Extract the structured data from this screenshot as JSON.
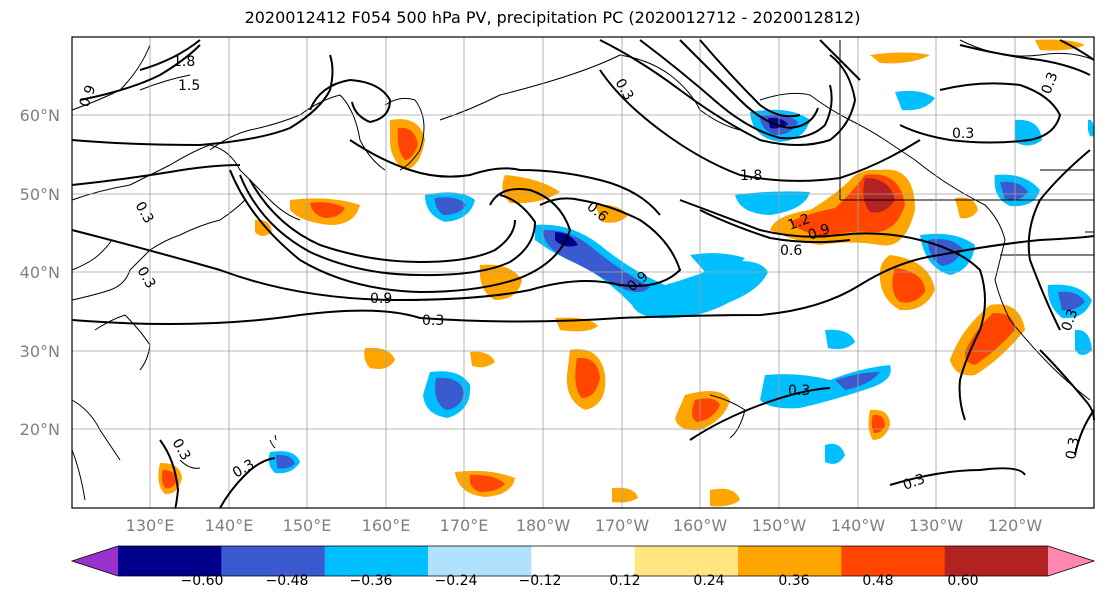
{
  "title": "2020012412 F054 500 hPa PV, precipitation PC (2020012712 - 2020012812)",
  "lat_labels": [
    "60°N",
    "50°N",
    "40°N",
    "30°N",
    "20°N"
  ],
  "lon_labels": [
    "130°E",
    "140°E",
    "150°E",
    "160°E",
    "170°E",
    "180°W",
    "170°W",
    "160°W",
    "150°W",
    "140°W",
    "130°W",
    "120°W"
  ],
  "contour_labels": [
    "1.8",
    "1.5",
    "0.9",
    "0.3",
    "0.3",
    "0.9",
    "0.3",
    "0.6",
    "0.9",
    "1.2",
    "0.9",
    "0.6",
    "1.8",
    "0.3",
    "0.3",
    "0.3",
    "0.3",
    "0.3",
    "0.3",
    "0.3",
    "0.3",
    "0.3"
  ],
  "colorbar": {
    "tick_labels": [
      "−0.60",
      "−0.48",
      "−0.36",
      "−0.24",
      "−0.12",
      "0.12",
      "0.24",
      "0.36",
      "0.48",
      "0.60"
    ],
    "colors": [
      "#9932CC",
      "#00008B",
      "#3A5BCF",
      "#00BFFF",
      "#B0E2FF",
      "#FFFFFF",
      "#FFE680",
      "#FFA500",
      "#FF4500",
      "#B22222",
      "#FF88B0"
    ]
  }
}
